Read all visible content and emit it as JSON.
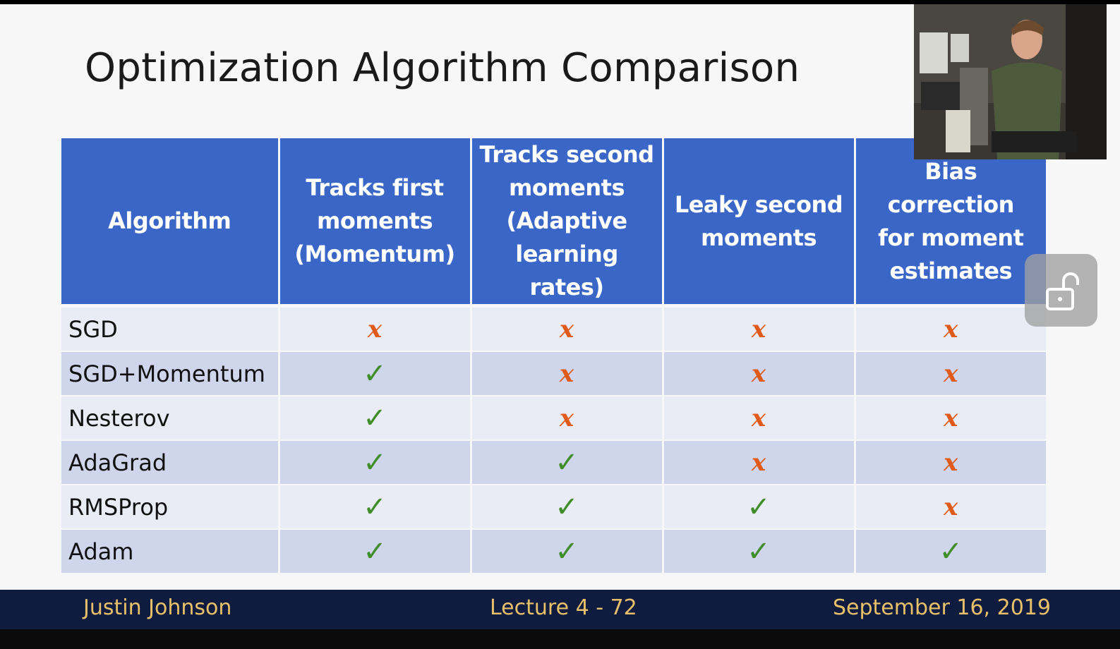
{
  "slide": {
    "title": "Optimization Algorithm Comparison",
    "table": {
      "headers": [
        [
          "Algorithm"
        ],
        [
          "Tracks first",
          "moments",
          "(Momentum)"
        ],
        [
          "Tracks second",
          "moments",
          "(Adaptive",
          "learning rates)"
        ],
        [
          "Leaky second",
          "moments"
        ],
        [
          "Bias correction",
          "for moment",
          "estimates"
        ]
      ],
      "rows": [
        {
          "algorithm": "SGD",
          "marks": [
            "x",
            "x",
            "x",
            "x"
          ]
        },
        {
          "algorithm": "SGD+Momentum",
          "marks": [
            "check",
            "x",
            "x",
            "x"
          ]
        },
        {
          "algorithm": "Nesterov",
          "marks": [
            "check",
            "x",
            "x",
            "x"
          ]
        },
        {
          "algorithm": "AdaGrad",
          "marks": [
            "check",
            "check",
            "x",
            "x"
          ]
        },
        {
          "algorithm": "RMSProp",
          "marks": [
            "check",
            "check",
            "check",
            "x"
          ]
        },
        {
          "algorithm": "Adam",
          "marks": [
            "check",
            "check",
            "check",
            "check"
          ]
        }
      ],
      "symbols": {
        "check": "✓",
        "x": "x"
      }
    },
    "footer": {
      "author": "Justin Johnson",
      "lecture": "Lecture 4 - 72",
      "date": "September 16, 2019"
    }
  },
  "overlay": {
    "webcam_icon": "webcam-video-feed",
    "lock_icon": "unlock-icon"
  },
  "colors": {
    "header_bg": "#3a66c7",
    "row_dark": "#cfd5ea",
    "row_light": "#e9ecf5",
    "check": "#3f8e2a",
    "cross": "#e05a1a",
    "footer_bg": "#101c3f",
    "footer_text": "#e8c069"
  }
}
